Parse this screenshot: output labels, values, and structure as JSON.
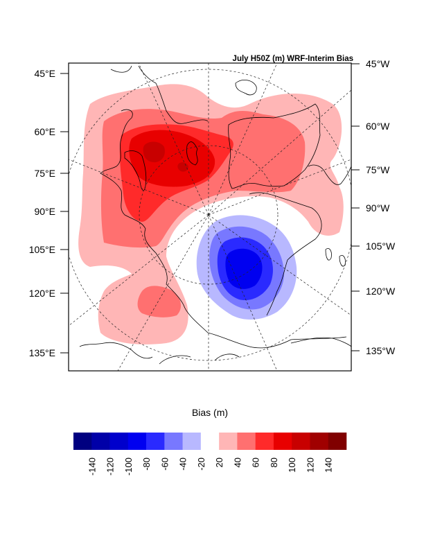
{
  "chart_data": {
    "type": "heatmap",
    "title": "July H50Z (m) WRF-Interim Bias",
    "projection": "polar stereographic (north)",
    "left_axis_labels": [
      "45°E",
      "60°E",
      "75°E",
      "90°E",
      "105°E",
      "120°E",
      "135°E"
    ],
    "right_axis_labels": [
      "45°W",
      "60°W",
      "75°W",
      "90°W",
      "105°W",
      "120°W",
      "135°W"
    ],
    "colorbar": {
      "label": "Bias (m)",
      "tick_labels": [
        "-140",
        "-120",
        "-100",
        "-80",
        "-60",
        "-40",
        "-20",
        "20",
        "40",
        "60",
        "80",
        "100",
        "120",
        "140"
      ],
      "levels": [
        -160,
        -140,
        -120,
        -100,
        -80,
        -60,
        -40,
        -20,
        20,
        40,
        60,
        80,
        100,
        120,
        140,
        160
      ],
      "colors": [
        "#000080",
        "#0000a8",
        "#0000cc",
        "#0000f0",
        "#2a2aff",
        "#7878ff",
        "#b8b8ff",
        "#ffffff",
        "#ffb6b6",
        "#ff7070",
        "#ff2a2a",
        "#e80000",
        "#c80000",
        "#a00000",
        "#800000"
      ]
    },
    "features": [
      {
        "name": "positive-bias-center-eurasia",
        "max_level": 100
      },
      {
        "name": "positive-bias-north-america-greenland",
        "max_level": 60
      },
      {
        "name": "positive-bias-east-asia",
        "max_level": 60
      },
      {
        "name": "negative-bias-center-arctic-canada",
        "min_level": -80
      }
    ]
  }
}
